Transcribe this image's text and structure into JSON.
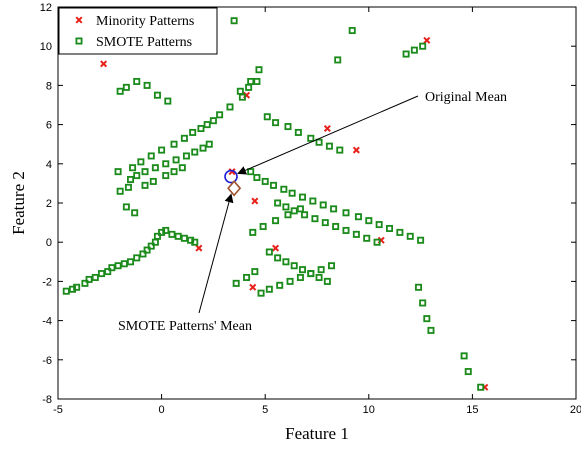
{
  "chart_data": {
    "type": "scatter",
    "xlabel": "Feature 1",
    "ylabel": "Feature 2",
    "xlim": [
      -5,
      20
    ],
    "ylim": [
      -8,
      12
    ],
    "xticks": [
      "-5",
      "0",
      "5",
      "10",
      "15",
      "20"
    ],
    "yticks": [
      "-8",
      "-6",
      "-4",
      "-2",
      "0",
      "2",
      "4",
      "6",
      "8",
      "10",
      "12"
    ],
    "grid": false,
    "legend_position": "top-left",
    "colors": {
      "minority": "#e8201a",
      "smote": "#1a8a1a",
      "original_mean": "#1f1fd6",
      "smote_mean": "#a0522d",
      "axis": "#000000"
    },
    "series": [
      {
        "name": "Minority Patterns",
        "marker": "x",
        "x": [
          -2.8,
          12.8,
          9.4,
          4.1,
          3.4,
          4.4,
          1.8,
          8.0,
          10.6,
          4.5,
          15.6,
          5.5
        ],
        "y": [
          9.1,
          10.3,
          4.7,
          7.5,
          3.6,
          -2.3,
          -0.3,
          5.8,
          0.1,
          2.1,
          -7.4,
          -0.3
        ]
      },
      {
        "name": "SMOTE Patterns",
        "marker": "square",
        "x": [
          -4.6,
          -4.3,
          -4.1,
          -3.7,
          -3.5,
          -3.2,
          -2.9,
          -2.6,
          -2.4,
          -2.1,
          -1.8,
          -1.5,
          -1.2,
          -0.9,
          -0.7,
          -0.5,
          -0.3,
          -0.2,
          0.0,
          0.2,
          0.5,
          0.8,
          1.1,
          1.4,
          1.6,
          -2.0,
          -1.7,
          -1.2,
          -0.7,
          -0.2,
          0.3,
          -2.1,
          -1.4,
          -1.0,
          -0.5,
          0.0,
          0.6,
          1.1,
          1.5,
          1.9,
          2.2,
          -1.5,
          -1.2,
          -0.8,
          -0.3,
          0.2,
          0.7,
          1.2,
          1.6,
          2.0,
          2.3,
          2.5,
          2.8,
          3.3,
          3.9,
          4.3,
          4.7,
          5.1,
          5.5,
          6.1,
          6.6,
          7.2,
          7.6,
          8.1,
          8.6,
          4.3,
          4.6,
          5.0,
          5.4,
          5.9,
          6.3,
          6.8,
          7.3,
          7.8,
          8.3,
          8.9,
          9.5,
          10.0,
          10.5,
          11.0,
          11.5,
          12.0,
          12.5,
          11.8,
          12.2,
          12.6,
          9.2,
          8.5,
          3.8,
          4.2,
          4.6,
          3.5,
          5.6,
          6.0,
          6.4,
          6.9,
          7.4,
          7.9,
          8.4,
          8.9,
          9.4,
          9.9,
          10.4,
          5.2,
          5.6,
          6.0,
          6.4,
          6.8,
          7.2,
          7.6,
          8.0,
          4.8,
          5.2,
          5.7,
          6.2,
          6.7,
          7.2,
          7.7,
          8.2,
          4.4,
          4.9,
          5.5,
          6.1,
          6.7,
          12.4,
          12.6,
          12.8,
          13.0,
          14.6,
          14.8,
          15.4,
          3.6,
          4.1,
          4.5,
          -2.0,
          -1.6,
          -0.8,
          -0.4,
          0.2,
          0.6,
          1.0,
          -1.3,
          -1.7
        ],
        "y": [
          -2.5,
          -2.4,
          -2.3,
          -2.1,
          -1.9,
          -1.8,
          -1.6,
          -1.5,
          -1.3,
          -1.2,
          -1.1,
          -1.0,
          -0.8,
          -0.6,
          -0.4,
          -0.2,
          0.0,
          0.3,
          0.5,
          0.6,
          0.4,
          0.3,
          0.2,
          0.1,
          0.0,
          7.7,
          7.9,
          8.2,
          8.0,
          7.5,
          7.2,
          3.6,
          3.8,
          4.1,
          4.4,
          4.7,
          5.0,
          5.3,
          5.6,
          5.8,
          6.0,
          3.2,
          3.4,
          3.6,
          3.8,
          4.0,
          4.2,
          4.4,
          4.6,
          4.8,
          5.0,
          6.2,
          6.5,
          6.9,
          7.4,
          8.2,
          8.8,
          6.4,
          6.1,
          5.9,
          5.6,
          5.3,
          5.1,
          4.9,
          4.7,
          3.6,
          3.3,
          3.1,
          2.9,
          2.7,
          2.5,
          2.3,
          2.1,
          1.9,
          1.7,
          1.5,
          1.3,
          1.1,
          0.9,
          0.7,
          0.5,
          0.3,
          0.1,
          9.6,
          9.8,
          10.0,
          10.8,
          9.3,
          7.7,
          7.9,
          8.2,
          11.3,
          2.0,
          1.8,
          1.6,
          1.4,
          1.2,
          1.0,
          0.8,
          0.6,
          0.4,
          0.2,
          0.0,
          -0.5,
          -0.8,
          -1.0,
          -1.2,
          -1.4,
          -1.6,
          -1.8,
          -2.0,
          -2.6,
          -2.4,
          -2.2,
          -2.0,
          -1.8,
          -1.6,
          -1.4,
          -1.2,
          0.5,
          0.8,
          1.1,
          1.4,
          1.7,
          -2.3,
          -3.1,
          -3.9,
          -4.5,
          -5.8,
          -6.6,
          -7.4,
          -2.1,
          -1.8,
          -1.5,
          2.6,
          2.8,
          2.9,
          3.1,
          3.4,
          3.6,
          3.8,
          1.5,
          1.8
        ]
      },
      {
        "name": "Original Mean",
        "marker": "circle",
        "x": [
          3.35
        ],
        "y": [
          3.35
        ]
      },
      {
        "name": "SMOTE Patterns' Mean",
        "marker": "diamond",
        "x": [
          3.5
        ],
        "y": [
          2.75
        ]
      }
    ],
    "legend": [
      "Minority Patterns",
      "SMOTE Patterns"
    ],
    "annotations": [
      {
        "text": "Original Mean",
        "arrow_to": [
          3.35,
          3.35
        ]
      },
      {
        "text": "SMOTE Patterns' Mean",
        "arrow_to": [
          3.5,
          2.75
        ]
      }
    ]
  }
}
